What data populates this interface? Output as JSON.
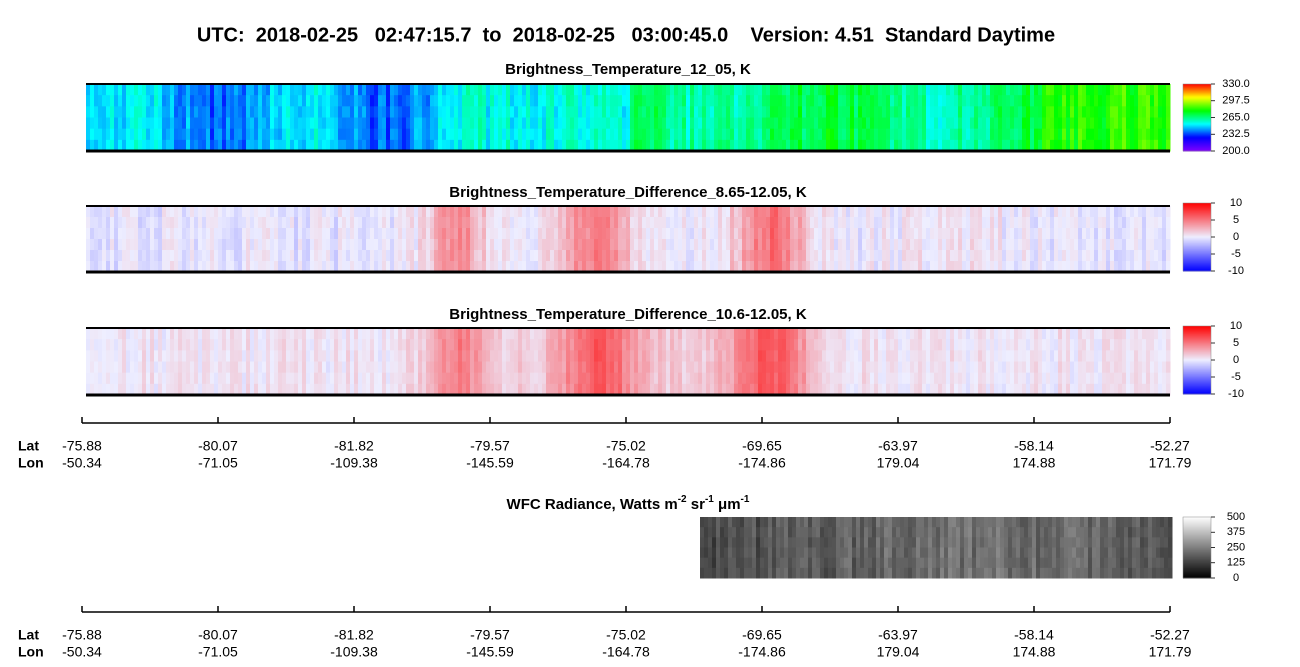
{
  "page_title": "UTC:  2018-02-25   02:47:15.7  to  2018-02-25   03:00:45.0    Version: 4.51  Standard Daytime",
  "chart_data": [
    {
      "type": "heatmap",
      "title": "Brightness_Temperature_12_05, K",
      "colormap": [
        "#7f00ff",
        "#0000ff",
        "#00ffff",
        "#00ff00",
        "#ffff00",
        "#ff0000"
      ],
      "clim": [
        200,
        330
      ],
      "cticks": [
        {
          "value": 330,
          "label": "330.0"
        },
        297.5,
        {
          "value": 265,
          "label": "265.0"
        },
        232.5,
        {
          "value": 200,
          "label": "200.0"
        }
      ]
    },
    {
      "type": "heatmap",
      "title": "Brightness_Temperature_Difference_8.65-12.05, K",
      "colormap": [
        "#0000ff",
        "#eeeeff",
        "#ff0000"
      ],
      "clim": [
        -10,
        10
      ],
      "cticks": [
        10,
        5,
        0,
        -5,
        -10
      ]
    },
    {
      "type": "heatmap",
      "title": "Brightness_Temperature_Difference_10.6-12.05, K",
      "colormap": [
        "#0000ff",
        "#eeeeff",
        "#ff0000"
      ],
      "clim": [
        -10,
        10
      ],
      "cticks": [
        10,
        5,
        0,
        -5,
        -10
      ]
    },
    {
      "type": "heatmap",
      "title_parts": [
        {
          "text": "WFC Radiance, Watts m"
        },
        {
          "text": "-2",
          "sup": true
        },
        {
          "text": " sr"
        },
        {
          "text": "-1",
          "sup": true
        },
        {
          "text": " μm"
        },
        {
          "text": "-1",
          "sup": true
        }
      ],
      "colormap": [
        "#000000",
        "#ffffff"
      ],
      "clim": [
        0,
        500
      ],
      "cticks": [
        500,
        375,
        250,
        125,
        0
      ]
    }
  ],
  "geo_axes": [
    {
      "lat_label": "Lat",
      "lon_label": "Lon",
      "lat": [
        -75.88,
        -80.07,
        -81.82,
        -79.57,
        -75.02,
        -69.65,
        -63.97,
        -58.14,
        -52.27
      ],
      "lon": [
        -50.34,
        -71.05,
        -109.38,
        -145.59,
        -164.78,
        -174.86,
        179.04,
        174.88,
        171.79
      ]
    },
    {
      "lat_label": "Lat",
      "lon_label": "Lon",
      "lat": [
        -75.88,
        -80.07,
        -81.82,
        -79.57,
        -75.02,
        -69.65,
        -63.97,
        -58.14,
        -52.27
      ],
      "lon": [
        -50.34,
        -71.05,
        -109.38,
        -145.59,
        -164.78,
        -174.86,
        179.04,
        174.88,
        171.79
      ]
    }
  ]
}
